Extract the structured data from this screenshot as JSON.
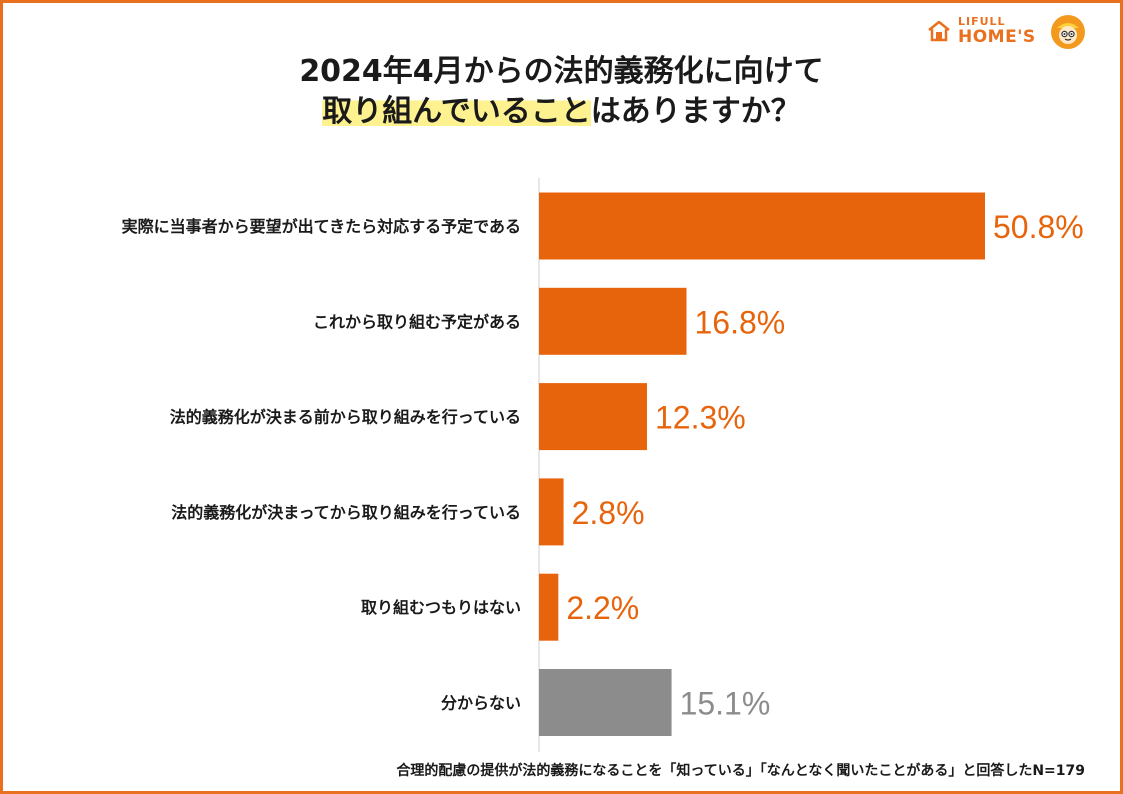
{
  "title": {
    "line1": "2024年4月からの法的義務化に向けて",
    "line2_highlight": "取り組んでいること",
    "line2_rest": "はありますか？"
  },
  "logo": {
    "top": "LIFULL",
    "bottom": "HOME'S"
  },
  "footnote": "合理的配慮の提供が法的義務になることを「知っている」「なんとなく聞いたことがある」と回答したN=179",
  "colors": {
    "accent": "#e8640c",
    "gray": "#8c8c8c",
    "frame": "#e8701f",
    "highlight": "#fdf28f"
  },
  "chart_data": {
    "type": "bar",
    "orientation": "horizontal",
    "unit": "%",
    "xlim": [
      0,
      60
    ],
    "categories": [
      "実際に当事者から要望が出てきたら対応する予定である",
      "これから取り組む予定がある",
      "法的義務化が決まる前から取り組みを行っている",
      "法的義務化が決まってから取り組みを行っている",
      "取り組むつもりはない",
      "分からない"
    ],
    "values": [
      50.8,
      16.8,
      12.3,
      2.8,
      2.2,
      15.1
    ],
    "labels": [
      "50.8%",
      "16.8%",
      "12.3%",
      "2.8%",
      "2.2%",
      "15.1%"
    ],
    "bar_colors": [
      "#e8640c",
      "#e8640c",
      "#e8640c",
      "#e8640c",
      "#e8640c",
      "#8c8c8c"
    ],
    "label_colors": [
      "#e8640c",
      "#e8640c",
      "#e8640c",
      "#e8640c",
      "#e8640c",
      "#8c8c8c"
    ],
    "grid": false,
    "legend": "none"
  }
}
